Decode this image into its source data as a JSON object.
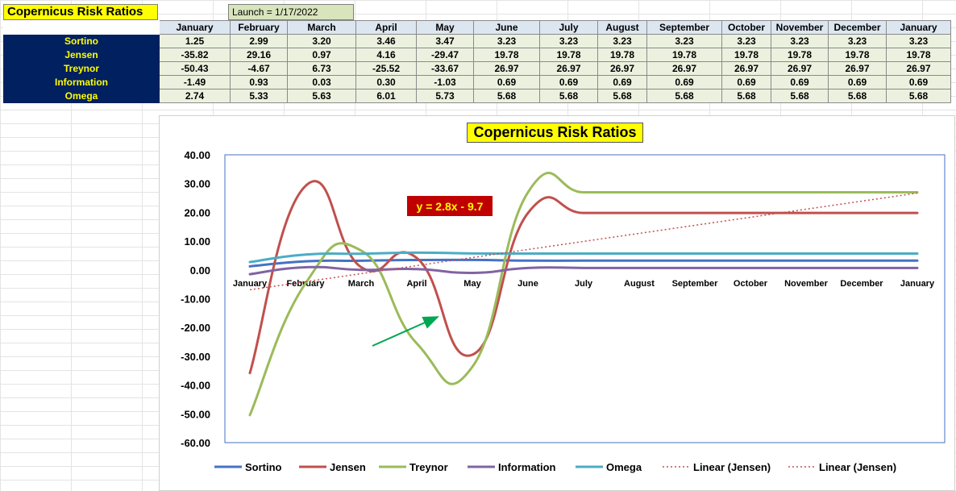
{
  "sheet": {
    "title": "Copernicus Risk Ratios",
    "launch": "Launch = 1/17/2022"
  },
  "table": {
    "months": [
      "January",
      "February",
      "March",
      "April",
      "May",
      "June",
      "July",
      "August",
      "September",
      "October",
      "November",
      "December",
      "January"
    ],
    "rows": [
      {
        "name": "Sortino",
        "values": [
          "1.25",
          "2.99",
          "3.20",
          "3.46",
          "3.47",
          "3.23",
          "3.23",
          "3.23",
          "3.23",
          "3.23",
          "3.23",
          "3.23",
          "3.23"
        ]
      },
      {
        "name": "Jensen",
        "values": [
          "-35.82",
          "29.16",
          "0.97",
          "4.16",
          "-29.47",
          "19.78",
          "19.78",
          "19.78",
          "19.78",
          "19.78",
          "19.78",
          "19.78",
          "19.78"
        ]
      },
      {
        "name": "Treynor",
        "values": [
          "-50.43",
          "-4.67",
          "6.73",
          "-25.52",
          "-33.67",
          "26.97",
          "26.97",
          "26.97",
          "26.97",
          "26.97",
          "26.97",
          "26.97",
          "26.97"
        ]
      },
      {
        "name": "Information",
        "values": [
          "-1.49",
          "0.93",
          "0.03",
          "0.30",
          "-1.03",
          "0.69",
          "0.69",
          "0.69",
          "0.69",
          "0.69",
          "0.69",
          "0.69",
          "0.69"
        ]
      },
      {
        "name": "Omega",
        "values": [
          "2.74",
          "5.33",
          "5.63",
          "6.01",
          "5.73",
          "5.68",
          "5.68",
          "5.68",
          "5.68",
          "5.68",
          "5.68",
          "5.68",
          "5.68"
        ]
      }
    ]
  },
  "chart_data": {
    "type": "line",
    "title": "Copernicus Risk Ratios",
    "categories": [
      "January",
      "February",
      "March",
      "April",
      "May",
      "June",
      "July",
      "August",
      "September",
      "October",
      "November",
      "December",
      "January"
    ],
    "ylim": [
      -60,
      40
    ],
    "yticks": [
      "40.00",
      "30.00",
      "20.00",
      "10.00",
      "0.00",
      "-10.00",
      "-20.00",
      "-30.00",
      "-40.00",
      "-50.00",
      "-60.00"
    ],
    "grid": false,
    "legend": "bottom",
    "series": [
      {
        "name": "Sortino",
        "color": "#4472c4",
        "values": [
          1.25,
          2.99,
          3.2,
          3.46,
          3.47,
          3.23,
          3.23,
          3.23,
          3.23,
          3.23,
          3.23,
          3.23,
          3.23
        ]
      },
      {
        "name": "Jensen",
        "color": "#c0504d",
        "values": [
          -35.82,
          29.16,
          0.97,
          4.16,
          -29.47,
          19.78,
          19.78,
          19.78,
          19.78,
          19.78,
          19.78,
          19.78,
          19.78
        ]
      },
      {
        "name": "Treynor",
        "color": "#9bbb59",
        "values": [
          -50.43,
          -4.67,
          6.73,
          -25.52,
          -33.67,
          26.97,
          26.97,
          26.97,
          26.97,
          26.97,
          26.97,
          26.97,
          26.97
        ]
      },
      {
        "name": "Information",
        "color": "#8064a2",
        "values": [
          -1.49,
          0.93,
          0.03,
          0.3,
          -1.03,
          0.69,
          0.69,
          0.69,
          0.69,
          0.69,
          0.69,
          0.69,
          0.69
        ]
      },
      {
        "name": "Omega",
        "color": "#4bacc6",
        "values": [
          2.74,
          5.33,
          5.63,
          6.01,
          5.73,
          5.68,
          5.68,
          5.68,
          5.68,
          5.68,
          5.68,
          5.68,
          5.68
        ]
      }
    ],
    "trendline": {
      "name": "Linear (Jensen)",
      "slope": 2.8,
      "intercept": -9.7,
      "color": "#c0504d"
    },
    "legend_entries": [
      "Sortino",
      "Jensen",
      "Treynor",
      "Information",
      "Omega",
      "Linear (Jensen)",
      "Linear (Jensen)"
    ],
    "annotations": [
      {
        "text": "y = 2.8x - 9.7",
        "type": "label",
        "background": "#c00000",
        "color": "#ffff00"
      },
      {
        "type": "arrow",
        "color": "#00a651"
      }
    ]
  }
}
